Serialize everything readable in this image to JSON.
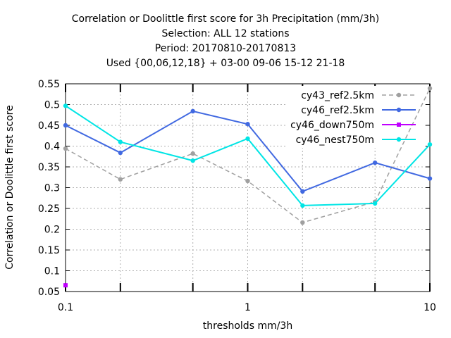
{
  "titles": [
    "Correlation or Doolittle first score  for 3h Precipitation (mm/3h)",
    "Selection: ALL      12 stations",
    "Period: 20170810-20170813",
    "Used {00,06,12,18} + 03-00 09-06 15-12 21-18"
  ],
  "chart_data": {
    "type": "line",
    "title": "Correlation or Doolittle first score  for 3h Precipitation (mm/3h)",
    "xlabel": "thresholds mm/3h",
    "ylabel": "Correlation or Doolittle first score",
    "x_scale": "log",
    "xlim": [
      0.1,
      10
    ],
    "ylim": [
      0.05,
      0.55
    ],
    "x_ticks": [
      0.1,
      1,
      10
    ],
    "x_tick_labels": [
      "0.1",
      "1",
      "10"
    ],
    "y_ticks": [
      0.05,
      0.1,
      0.15,
      0.2,
      0.25,
      0.3,
      0.35,
      0.4,
      0.45,
      0.5,
      0.55
    ],
    "y_tick_labels": [
      "0.05",
      "0.1",
      "0.15",
      "0.2",
      "0.25",
      "0.3",
      "0.35",
      "0.4",
      "0.45",
      "0.5",
      "0.55"
    ],
    "minor_x_ticks": [
      0.2,
      0.5,
      2,
      5
    ],
    "grid": true,
    "legend_position": "top-right",
    "series": [
      {
        "name": "cy43_ref2.5km",
        "color": "#a0a0a0",
        "dash": true,
        "marker": "circle",
        "x": [
          0.1,
          0.2,
          0.5,
          1,
          2,
          5,
          10
        ],
        "y": [
          0.394,
          0.32,
          0.382,
          0.316,
          0.216,
          0.266,
          0.539
        ]
      },
      {
        "name": "cy46_ref2.5km",
        "color": "#4169e1",
        "dash": false,
        "marker": "circle",
        "x": [
          0.1,
          0.2,
          0.5,
          1,
          2,
          5,
          10
        ],
        "y": [
          0.45,
          0.384,
          0.484,
          0.453,
          0.291,
          0.36,
          0.322
        ]
      },
      {
        "name": "cy46_down750m",
        "color": "#c000ff",
        "dash": false,
        "marker": "square",
        "x": [
          0.1
        ],
        "y": [
          0.065
        ]
      },
      {
        "name": "cy46_nest750m",
        "color": "#00e5e5",
        "dash": false,
        "marker": "circle",
        "x": [
          0.1,
          0.2,
          0.5,
          1,
          2,
          5,
          10
        ],
        "y": [
          0.497,
          0.41,
          0.365,
          0.418,
          0.257,
          0.262,
          0.404
        ]
      }
    ]
  }
}
